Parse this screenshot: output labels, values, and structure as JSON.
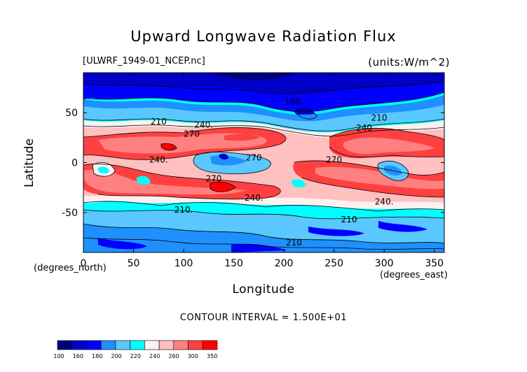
{
  "chart_data": {
    "type": "heatmap",
    "title": "Upward Longwave Radiation Flux",
    "subtitle_left": "[ULWRF_1949-01_NCEP.nc]",
    "subtitle_right": "(units:W/m^2)",
    "xlabel": "Longitude",
    "ylabel": "Latitude",
    "xlabel_unit": "(degrees_east)",
    "ylabel_unit": "(degrees_north)",
    "xlim": [
      0,
      360
    ],
    "ylim": [
      -90,
      90
    ],
    "x_ticks": [
      0,
      50,
      100,
      150,
      200,
      250,
      300,
      350
    ],
    "y_ticks": [
      -50,
      0,
      50
    ],
    "contour_interval_text": "CONTOUR INTERVAL = 1.500E+01",
    "contour_labels": [
      {
        "text": "180.",
        "lon": 210,
        "lat": 58
      },
      {
        "text": "210",
        "lon": 75,
        "lat": 38
      },
      {
        "text": "240.",
        "lon": 120,
        "lat": 35
      },
      {
        "text": "270",
        "lon": 108,
        "lat": 26
      },
      {
        "text": "240.",
        "lon": 75,
        "lat": 0
      },
      {
        "text": "270",
        "lon": 170,
        "lat": 2
      },
      {
        "text": "270",
        "lon": 130,
        "lat": -19
      },
      {
        "text": "240.",
        "lon": 170,
        "lat": -38
      },
      {
        "text": "210.",
        "lon": 100,
        "lat": -50
      },
      {
        "text": "210",
        "lon": 265,
        "lat": -60
      },
      {
        "text": "210",
        "lon": 210,
        "lat": -83
      },
      {
        "text": "240.",
        "lon": 300,
        "lat": -42
      },
      {
        "text": "270",
        "lon": 250,
        "lat": 0
      },
      {
        "text": "240",
        "lon": 280,
        "lat": 32
      },
      {
        "text": "210",
        "lon": 295,
        "lat": 42
      }
    ],
    "colorbar": {
      "levels": [
        "100",
        "160",
        "180",
        "200",
        "220",
        "240",
        "260",
        "300",
        "350"
      ],
      "colors": [
        "#00007f",
        "#0000c8",
        "#0000ff",
        "#1e90ff",
        "#5ac8ff",
        "#00ffff",
        "#fff0f0",
        "#ffc0c0",
        "#ff8080",
        "#ff4040",
        "#ff0000"
      ]
    }
  }
}
